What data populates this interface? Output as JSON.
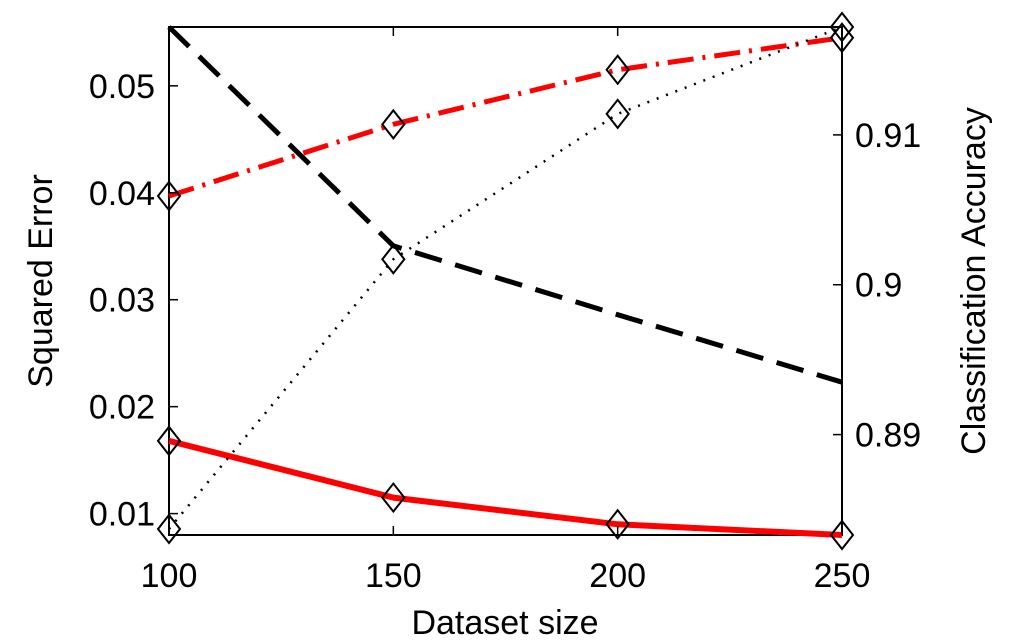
{
  "chart_data": {
    "type": "line",
    "xlabel": "Dataset size",
    "ylabel_left": "Squared Error",
    "ylabel_right": "Classification Accuracy",
    "x": [
      100,
      150,
      200,
      250
    ],
    "xlim": [
      100,
      250
    ],
    "ylim_left": [
      0.008,
      0.0555
    ],
    "ylim_right": [
      0.8833,
      0.9172
    ],
    "xticks": [
      "100",
      "150",
      "200",
      "250"
    ],
    "yticks_left": [
      "0.01",
      "0.02",
      "0.03",
      "0.04",
      "0.05"
    ],
    "yticks_right": [
      "0.89",
      "0.9",
      "0.91"
    ],
    "grid": false,
    "series": [
      {
        "axis": "left",
        "values": [
          0.0168,
          0.0115,
          0.009,
          0.008
        ],
        "color": "#ff0000",
        "style": "solid",
        "markers": "diamond"
      },
      {
        "axis": "left",
        "values": [
          0.0397,
          0.0464,
          0.0515,
          0.0545
        ],
        "color": "#ff0000",
        "style": "dash-dot",
        "markers": "diamond"
      },
      {
        "axis": "right",
        "values": [
          0.9172,
          0.9026,
          0.898,
          0.8935
        ],
        "color": "#000000",
        "style": "dashed",
        "markers": "none"
      },
      {
        "axis": "right",
        "values": [
          0.8837,
          0.9017,
          0.9114,
          0.9172
        ],
        "color": "#000000",
        "style": "dotted",
        "markers": "diamond"
      }
    ]
  }
}
